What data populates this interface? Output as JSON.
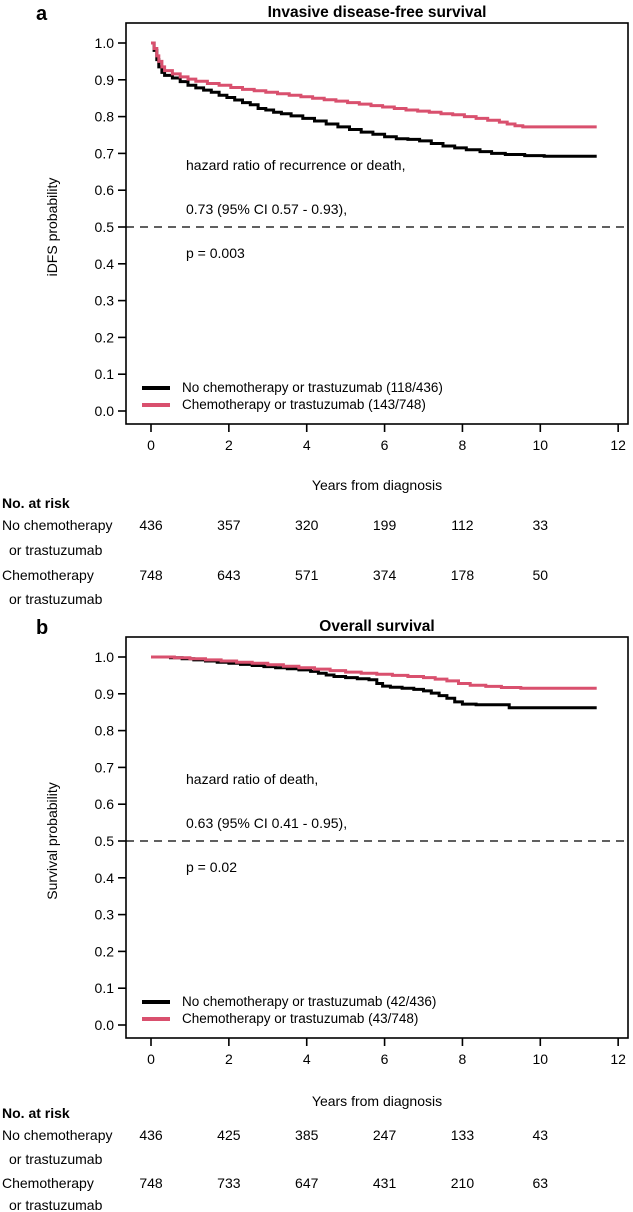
{
  "chart_data": [
    {
      "type": "line",
      "subtype": "kaplan-meier-step",
      "panel_label": "a",
      "title": "Invasive disease-free survival",
      "xlabel": "Years from diagnosis",
      "ylabel": "iDFS probability",
      "xlim": [
        0,
        12
      ],
      "ylim": [
        0.0,
        1.0
      ],
      "xticks": [
        "0",
        "2",
        "4",
        "6",
        "8",
        "10",
        "12"
      ],
      "yticks": [
        "1.0",
        "0.9",
        "0.8",
        "0.7",
        "0.6",
        "0.5",
        "0.4",
        "0.3",
        "0.2",
        "0.1",
        "0.0"
      ],
      "reference_line_y": 0.5,
      "annotation_lines": [
        "hazard ratio of recurrence or death,",
        "0.73 (95% CI 0.57 - 0.93),",
        "p = 0.003"
      ],
      "legend_position": "bottom-left-inside",
      "series": [
        {
          "name": "No chemotherapy or trastuzumab (118/436)",
          "color": "#000000",
          "points": [
            [
              0,
              1.0
            ],
            [
              0.08,
              0.98
            ],
            [
              0.15,
              0.955
            ],
            [
              0.2,
              0.935
            ],
            [
              0.28,
              0.92
            ],
            [
              0.35,
              0.912
            ],
            [
              0.55,
              0.905
            ],
            [
              0.75,
              0.895
            ],
            [
              0.95,
              0.885
            ],
            [
              1.15,
              0.878
            ],
            [
              1.35,
              0.872
            ],
            [
              1.55,
              0.866
            ],
            [
              1.75,
              0.858
            ],
            [
              1.95,
              0.852
            ],
            [
              2.15,
              0.845
            ],
            [
              2.35,
              0.838
            ],
            [
              2.55,
              0.832
            ],
            [
              2.75,
              0.822
            ],
            [
              2.95,
              0.818
            ],
            [
              3.15,
              0.812
            ],
            [
              3.35,
              0.808
            ],
            [
              3.6,
              0.802
            ],
            [
              3.9,
              0.795
            ],
            [
              4.2,
              0.788
            ],
            [
              4.5,
              0.78
            ],
            [
              4.8,
              0.772
            ],
            [
              5.1,
              0.765
            ],
            [
              5.4,
              0.758
            ],
            [
              5.7,
              0.752
            ],
            [
              6.0,
              0.745
            ],
            [
              6.3,
              0.74
            ],
            [
              6.6,
              0.738
            ],
            [
              6.9,
              0.734
            ],
            [
              7.2,
              0.727
            ],
            [
              7.5,
              0.72
            ],
            [
              7.8,
              0.715
            ],
            [
              8.1,
              0.71
            ],
            [
              8.45,
              0.705
            ],
            [
              8.75,
              0.7
            ],
            [
              9.1,
              0.697
            ],
            [
              9.6,
              0.694
            ],
            [
              10.1,
              0.692
            ],
            [
              11.45,
              0.692
            ]
          ]
        },
        {
          "name": "Chemotherapy or trastuzumab (143/748)",
          "color": "#d9506e",
          "points": [
            [
              0,
              1.0
            ],
            [
              0.08,
              0.985
            ],
            [
              0.15,
              0.965
            ],
            [
              0.2,
              0.95
            ],
            [
              0.28,
              0.935
            ],
            [
              0.35,
              0.925
            ],
            [
              0.55,
              0.916
            ],
            [
              0.75,
              0.908
            ],
            [
              0.95,
              0.902
            ],
            [
              1.15,
              0.896
            ],
            [
              1.45,
              0.89
            ],
            [
              1.75,
              0.885
            ],
            [
              2.05,
              0.879
            ],
            [
              2.35,
              0.874
            ],
            [
              2.65,
              0.87
            ],
            [
              2.95,
              0.866
            ],
            [
              3.25,
              0.862
            ],
            [
              3.55,
              0.858
            ],
            [
              3.85,
              0.854
            ],
            [
              4.15,
              0.85
            ],
            [
              4.45,
              0.846
            ],
            [
              4.75,
              0.842
            ],
            [
              5.05,
              0.838
            ],
            [
              5.35,
              0.834
            ],
            [
              5.65,
              0.83
            ],
            [
              5.95,
              0.826
            ],
            [
              6.25,
              0.822
            ],
            [
              6.55,
              0.818
            ],
            [
              6.85,
              0.815
            ],
            [
              7.15,
              0.812
            ],
            [
              7.45,
              0.808
            ],
            [
              7.75,
              0.805
            ],
            [
              8.05,
              0.8
            ],
            [
              8.35,
              0.795
            ],
            [
              8.65,
              0.79
            ],
            [
              8.95,
              0.785
            ],
            [
              9.15,
              0.78
            ],
            [
              9.35,
              0.775
            ],
            [
              9.55,
              0.772
            ],
            [
              11.45,
              0.772
            ]
          ]
        }
      ],
      "risk_table": {
        "header": "No. at risk",
        "times": [
          0,
          2,
          4,
          6,
          8,
          10
        ],
        "rows": [
          {
            "label": [
              "No chemotherapy",
              "or trastuzumab"
            ],
            "counts": [
              436,
              357,
              320,
              199,
              112,
              33
            ]
          },
          {
            "label": [
              "Chemotherapy",
              "or trastuzumab"
            ],
            "counts": [
              748,
              643,
              571,
              374,
              178,
              50
            ]
          }
        ]
      }
    },
    {
      "type": "line",
      "subtype": "kaplan-meier-step",
      "panel_label": "b",
      "title": "Overall survival",
      "xlabel": "Years from diagnosis",
      "ylabel": "Survival probability",
      "xlim": [
        0,
        12
      ],
      "ylim": [
        0.0,
        1.0
      ],
      "xticks": [
        "0",
        "2",
        "4",
        "6",
        "8",
        "10",
        "12"
      ],
      "yticks": [
        "1.0",
        "0.9",
        "0.8",
        "0.7",
        "0.6",
        "0.5",
        "0.4",
        "0.3",
        "0.2",
        "0.1",
        "0.0"
      ],
      "reference_line_y": 0.5,
      "annotation_lines": [
        "hazard ratio of death,",
        "0.63 (95% CI 0.41 - 0.95),",
        "p = 0.02"
      ],
      "legend_position": "bottom-left-inside",
      "series": [
        {
          "name": "No chemotherapy or trastuzumab (42/436)",
          "color": "#000000",
          "points": [
            [
              0,
              1.0
            ],
            [
              0.5,
              0.998
            ],
            [
              0.8,
              0.995
            ],
            [
              1.1,
              0.992
            ],
            [
              1.4,
              0.989
            ],
            [
              1.7,
              0.986
            ],
            [
              2.0,
              0.983
            ],
            [
              2.3,
              0.98
            ],
            [
              2.6,
              0.977
            ],
            [
              2.9,
              0.974
            ],
            [
              3.2,
              0.971
            ],
            [
              3.5,
              0.968
            ],
            [
              3.8,
              0.965
            ],
            [
              4.1,
              0.961
            ],
            [
              4.3,
              0.956
            ],
            [
              4.5,
              0.951
            ],
            [
              4.7,
              0.947
            ],
            [
              5.0,
              0.944
            ],
            [
              5.3,
              0.941
            ],
            [
              5.6,
              0.938
            ],
            [
              5.8,
              0.928
            ],
            [
              5.95,
              0.921
            ],
            [
              6.15,
              0.918
            ],
            [
              6.45,
              0.915
            ],
            [
              6.75,
              0.912
            ],
            [
              7.0,
              0.908
            ],
            [
              7.2,
              0.902
            ],
            [
              7.4,
              0.895
            ],
            [
              7.6,
              0.888
            ],
            [
              7.8,
              0.878
            ],
            [
              8.0,
              0.872
            ],
            [
              8.35,
              0.87
            ],
            [
              9.2,
              0.862
            ],
            [
              11.45,
              0.862
            ]
          ]
        },
        {
          "name": "Chemotherapy or trastuzumab (43/748)",
          "color": "#d9506e",
          "points": [
            [
              0,
              1.0
            ],
            [
              0.6,
              0.998
            ],
            [
              1.0,
              0.995
            ],
            [
              1.4,
              0.992
            ],
            [
              1.8,
              0.989
            ],
            [
              2.2,
              0.986
            ],
            [
              2.6,
              0.983
            ],
            [
              3.0,
              0.979
            ],
            [
              3.4,
              0.975
            ],
            [
              3.8,
              0.971
            ],
            [
              4.2,
              0.967
            ],
            [
              4.6,
              0.963
            ],
            [
              5.0,
              0.959
            ],
            [
              5.4,
              0.956
            ],
            [
              5.8,
              0.953
            ],
            [
              6.2,
              0.95
            ],
            [
              6.6,
              0.947
            ],
            [
              7.0,
              0.944
            ],
            [
              7.3,
              0.94
            ],
            [
              7.6,
              0.935
            ],
            [
              7.9,
              0.928
            ],
            [
              8.2,
              0.923
            ],
            [
              8.6,
              0.92
            ],
            [
              9.0,
              0.917
            ],
            [
              9.5,
              0.915
            ],
            [
              11.45,
              0.915
            ]
          ]
        }
      ],
      "risk_table": {
        "header": "No. at risk",
        "times": [
          0,
          2,
          4,
          6,
          8,
          10
        ],
        "rows": [
          {
            "label": [
              "No chemotherapy",
              "or trastuzumab"
            ],
            "counts": [
              436,
              425,
              385,
              247,
              133,
              43
            ]
          },
          {
            "label": [
              "Chemotherapy",
              "or trastuzumab"
            ],
            "counts": [
              748,
              733,
              647,
              431,
              210,
              63
            ]
          }
        ]
      }
    }
  ]
}
